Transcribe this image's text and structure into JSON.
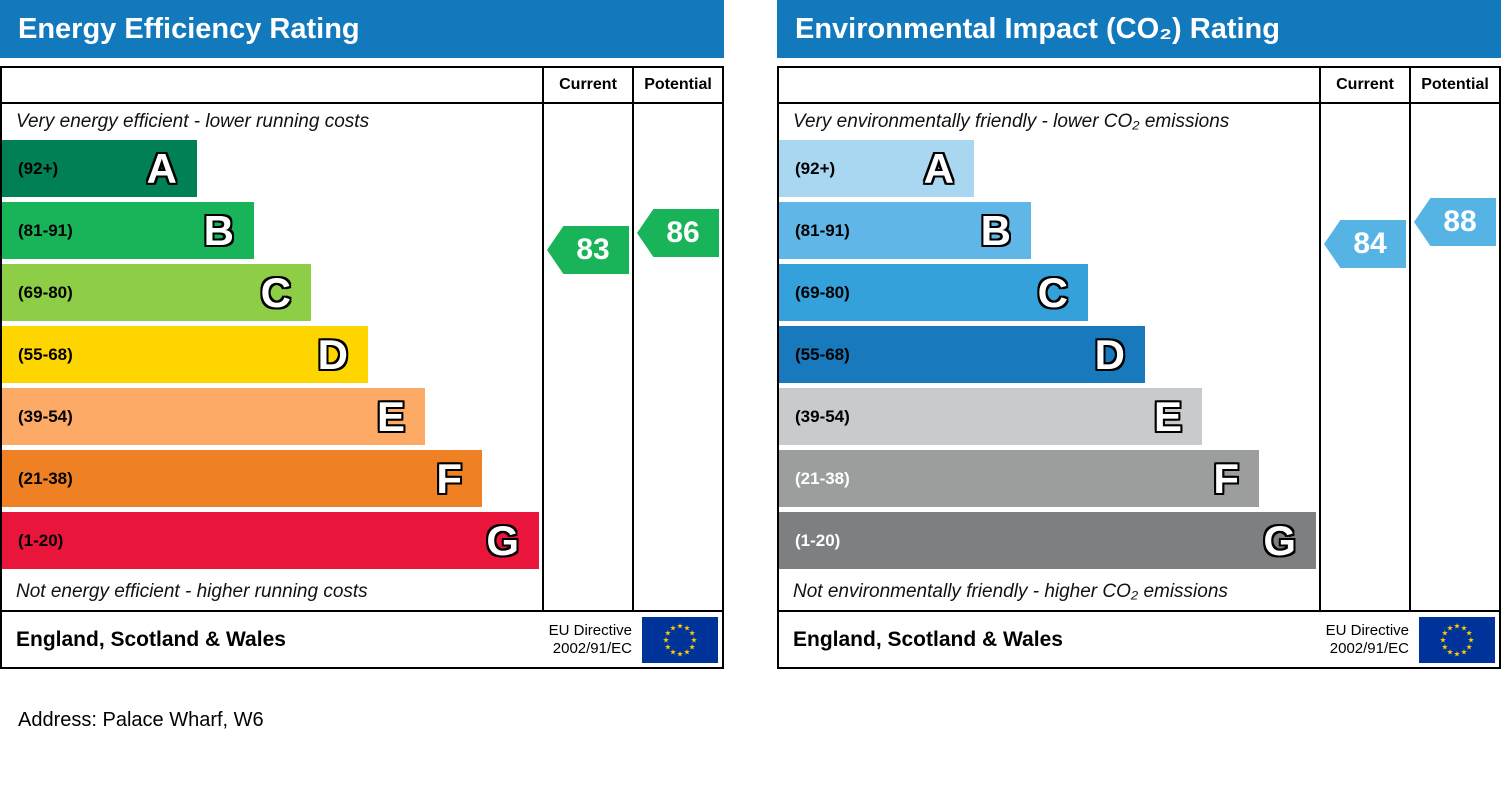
{
  "address_line": "Address: Palace Wharf, W6",
  "chart_data": [
    {
      "type": "bar",
      "title": "Energy Efficiency Rating",
      "title_bar_color": "#1279bd",
      "columns": {
        "current": "Current",
        "potential": "Potential"
      },
      "top_note": "Very energy efficient - lower running costs",
      "bottom_note": "Not energy efficient - higher running costs",
      "current": {
        "value": 83,
        "arrow_color": "#19b459"
      },
      "potential": {
        "value": 86,
        "arrow_color": "#19b459"
      },
      "bands": [
        {
          "letter": "A",
          "label": "(92+)",
          "min": 92,
          "max": 100,
          "color": "#008054",
          "label_color": "#000000"
        },
        {
          "letter": "B",
          "label": "(81-91)",
          "min": 81,
          "max": 91,
          "color": "#19b459",
          "label_color": "#000000"
        },
        {
          "letter": "C",
          "label": "(69-80)",
          "min": 69,
          "max": 80,
          "color": "#8dce46",
          "label_color": "#000000"
        },
        {
          "letter": "D",
          "label": "(55-68)",
          "min": 55,
          "max": 68,
          "color": "#ffd500",
          "label_color": "#000000"
        },
        {
          "letter": "E",
          "label": "(39-54)",
          "min": 39,
          "max": 54,
          "color": "#fcaa65",
          "label_color": "#000000"
        },
        {
          "letter": "F",
          "label": "(21-38)",
          "min": 21,
          "max": 38,
          "color": "#ef8023",
          "label_color": "#000000"
        },
        {
          "letter": "G",
          "label": "(1-20)",
          "min": 1,
          "max": 20,
          "color": "#e9153b",
          "label_color": "#000000"
        }
      ],
      "footer": {
        "region": "England, Scotland & Wales",
        "directive_line1": "EU Directive",
        "directive_line2": "2002/91/EC",
        "flag": {
          "background": "#003399",
          "star_color": "#ffcc00"
        }
      }
    },
    {
      "type": "bar",
      "title": "Environmental Impact (CO₂) Rating",
      "title_bar_color": "#1279bd",
      "columns": {
        "current": "Current",
        "potential": "Potential"
      },
      "top_note": "Very environmentally friendly - lower CO₂ emissions",
      "bottom_note": "Not environmentally friendly - higher CO₂ emissions",
      "current": {
        "value": 84,
        "arrow_color": "#56b4e5"
      },
      "potential": {
        "value": 88,
        "arrow_color": "#56b4e5"
      },
      "bands": [
        {
          "letter": "A",
          "label": "(92+)",
          "min": 92,
          "max": 100,
          "color": "#a9d7f2",
          "label_color": "#000000"
        },
        {
          "letter": "B",
          "label": "(81-91)",
          "min": 81,
          "max": 91,
          "color": "#60b7e7",
          "label_color": "#000000"
        },
        {
          "letter": "C",
          "label": "(69-80)",
          "min": 69,
          "max": 80,
          "color": "#34a1da",
          "label_color": "#000000"
        },
        {
          "letter": "D",
          "label": "(55-68)",
          "min": 55,
          "max": 68,
          "color": "#1879bc",
          "label_color": "#000000"
        },
        {
          "letter": "E",
          "label": "(39-54)",
          "min": 39,
          "max": 54,
          "color": "#c9cacb",
          "label_color": "#000000"
        },
        {
          "letter": "F",
          "label": "(21-38)",
          "min": 21,
          "max": 38,
          "color": "#9c9d9d",
          "label_color": "#ffffff"
        },
        {
          "letter": "G",
          "label": "(1-20)",
          "min": 1,
          "max": 20,
          "color": "#7e7f80",
          "label_color": "#ffffff"
        }
      ],
      "footer": {
        "region": "England, Scotland & Wales",
        "directive_line1": "EU Directive",
        "directive_line2": "2002/91/EC",
        "flag": {
          "background": "#003399",
          "star_color": "#ffcc00"
        }
      }
    }
  ]
}
